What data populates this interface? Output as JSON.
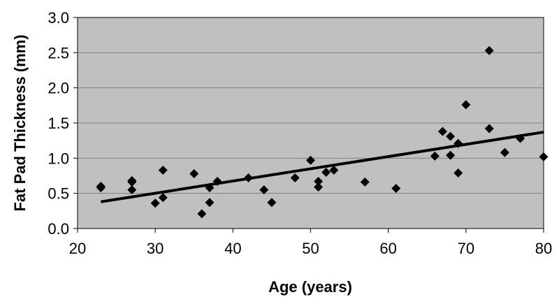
{
  "colors": {
    "plot_background": "#c0c0c0",
    "grid": "#808080",
    "marker": "#000000",
    "trendline": "#000000"
  },
  "chart_data": {
    "type": "scatter",
    "xlabel": "Age (years)",
    "ylabel": "Fat Pad Thickness (mm)",
    "xlim": [
      20,
      80
    ],
    "ylim": [
      0.0,
      3.0
    ],
    "x_ticks": [
      "20",
      "30",
      "40",
      "50",
      "60",
      "70",
      "80"
    ],
    "y_ticks": [
      "0.0",
      "0.5",
      "1.0",
      "1.5",
      "2.0",
      "2.5",
      "3.0"
    ],
    "grid": "horizontal",
    "marker": "diamond",
    "points": [
      {
        "x": 23,
        "y": 0.6
      },
      {
        "x": 23,
        "y": 0.58
      },
      {
        "x": 27,
        "y": 0.68
      },
      {
        "x": 27,
        "y": 0.66
      },
      {
        "x": 27,
        "y": 0.55
      },
      {
        "x": 30,
        "y": 0.36
      },
      {
        "x": 31,
        "y": 0.83
      },
      {
        "x": 31,
        "y": 0.44
      },
      {
        "x": 35,
        "y": 0.78
      },
      {
        "x": 36,
        "y": 0.21
      },
      {
        "x": 37,
        "y": 0.58
      },
      {
        "x": 37,
        "y": 0.37
      },
      {
        "x": 38,
        "y": 0.67
      },
      {
        "x": 42,
        "y": 0.72
      },
      {
        "x": 44,
        "y": 0.55
      },
      {
        "x": 45,
        "y": 0.37
      },
      {
        "x": 48,
        "y": 0.72
      },
      {
        "x": 50,
        "y": 0.97
      },
      {
        "x": 51,
        "y": 0.67
      },
      {
        "x": 51,
        "y": 0.59
      },
      {
        "x": 52,
        "y": 0.8
      },
      {
        "x": 53,
        "y": 0.83
      },
      {
        "x": 57,
        "y": 0.66
      },
      {
        "x": 61,
        "y": 0.57
      },
      {
        "x": 66,
        "y": 1.03
      },
      {
        "x": 67,
        "y": 1.38
      },
      {
        "x": 68,
        "y": 1.31
      },
      {
        "x": 68,
        "y": 1.04
      },
      {
        "x": 69,
        "y": 1.21
      },
      {
        "x": 69,
        "y": 0.79
      },
      {
        "x": 70,
        "y": 1.76
      },
      {
        "x": 73,
        "y": 2.53
      },
      {
        "x": 73,
        "y": 1.42
      },
      {
        "x": 75,
        "y": 1.08
      },
      {
        "x": 77,
        "y": 1.28
      },
      {
        "x": 80,
        "y": 1.02
      }
    ],
    "trendline": {
      "type": "linear",
      "x": [
        23,
        80
      ],
      "y": [
        0.38,
        1.37
      ]
    }
  }
}
